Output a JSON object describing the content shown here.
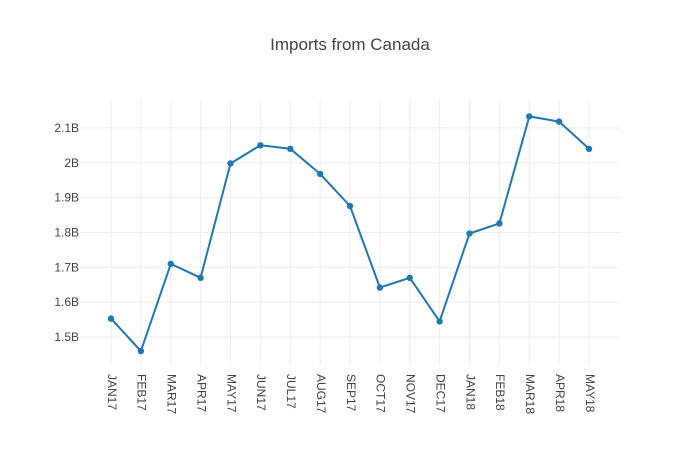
{
  "chart_data": {
    "type": "line",
    "title": "Imports from Canada",
    "xlabel": "",
    "ylabel": "",
    "categories": [
      "JAN17",
      "FEB17",
      "MAR17",
      "APR17",
      "MAY17",
      "JUN17",
      "JUL17",
      "AUG17",
      "SEP17",
      "OCT17",
      "NOV17",
      "DEC17",
      "JAN18",
      "FEB18",
      "MAR18",
      "APR18",
      "MAY18"
    ],
    "series": [
      {
        "values": [
          1.553,
          1.46,
          1.71,
          1.67,
          1.998,
          2.05,
          2.04,
          1.968,
          1.876,
          1.642,
          1.67,
          1.545,
          1.797,
          1.826,
          2.133,
          2.118,
          2.04
        ]
      }
    ],
    "yticks": [
      {
        "value": 1.5,
        "label": "1.5B"
      },
      {
        "value": 1.6,
        "label": "1.6B"
      },
      {
        "value": 1.7,
        "label": "1.7B"
      },
      {
        "value": 1.8,
        "label": "1.8B"
      },
      {
        "value": 1.9,
        "label": "1.9B"
      },
      {
        "value": 2.0,
        "label": "2B"
      },
      {
        "value": 2.1,
        "label": "2.1B"
      }
    ],
    "ylim": [
      1.42,
      2.18
    ],
    "grid": true,
    "line_color": "#1f77b4"
  }
}
